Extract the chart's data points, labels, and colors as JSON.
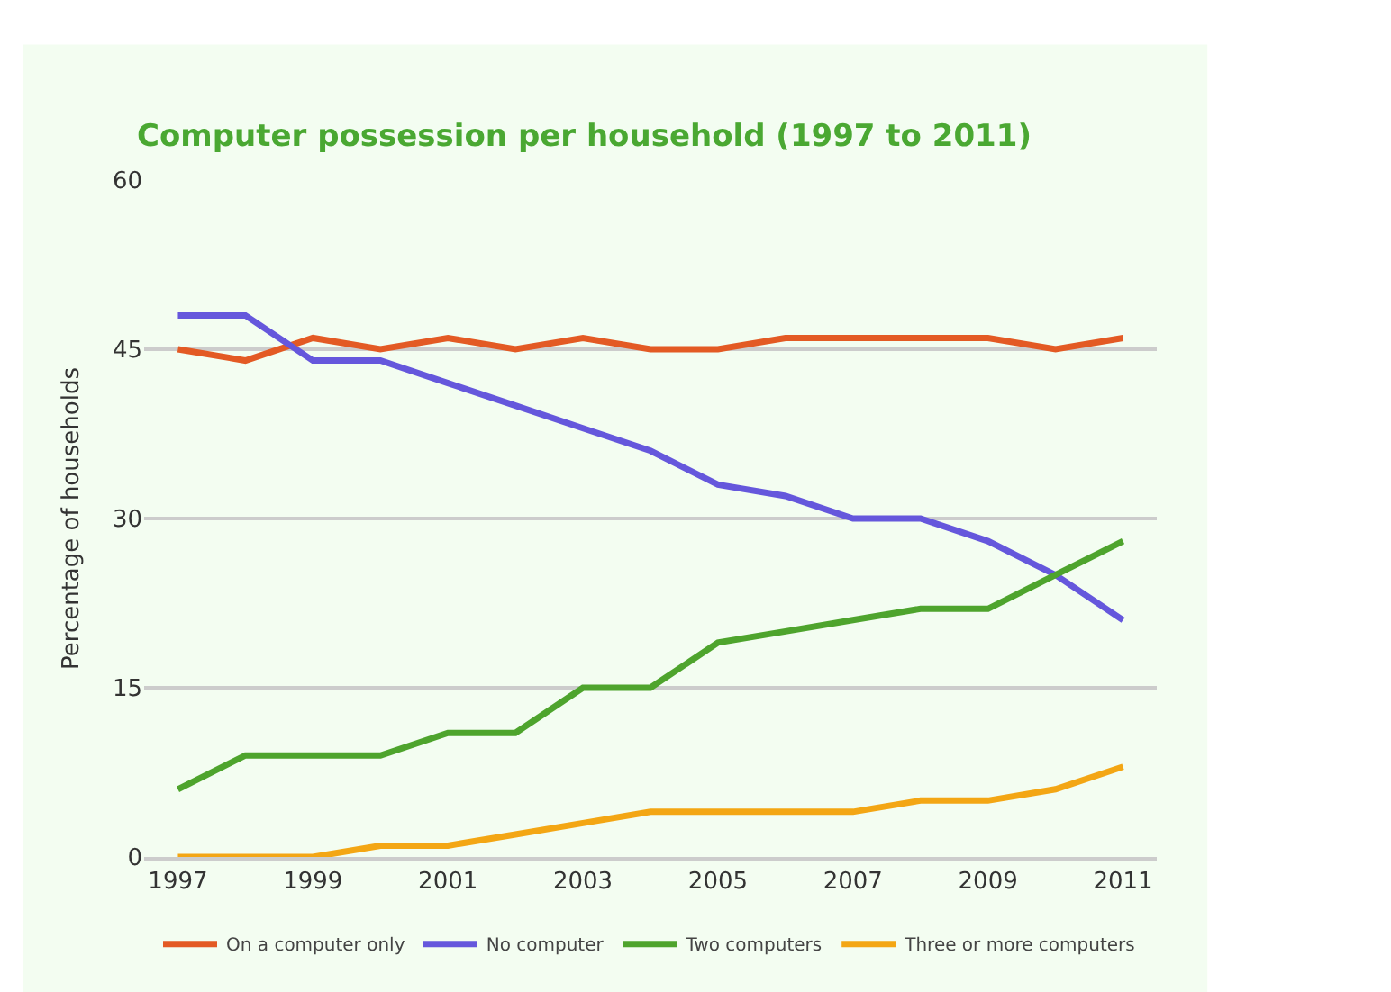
{
  "chart_data": {
    "type": "line",
    "title": "Computer possession per household (1997 to 2011)",
    "ylabel": "Percentage of households",
    "x": [
      1997,
      1998,
      1999,
      2000,
      2001,
      2002,
      2003,
      2004,
      2005,
      2006,
      2007,
      2008,
      2009,
      2010,
      2011
    ],
    "series": [
      {
        "name": "On a computer only",
        "color": "#e35a24",
        "values": [
          45,
          44,
          46,
          45,
          46,
          45,
          46,
          45,
          45,
          46,
          46,
          46,
          46,
          45,
          46
        ]
      },
      {
        "name": "No computer",
        "color": "#6557dc",
        "values": [
          48,
          48,
          44,
          44,
          42,
          40,
          38,
          36,
          33,
          32,
          30,
          30,
          28,
          25,
          21
        ]
      },
      {
        "name": "Two computers",
        "color": "#4ea42d",
        "values": [
          6,
          9,
          9,
          9,
          11,
          11,
          15,
          15,
          19,
          20,
          21,
          22,
          22,
          25,
          28
        ]
      },
      {
        "name": "Three or more computers",
        "color": "#f3a614",
        "values": [
          0,
          0,
          0,
          1,
          1,
          2,
          3,
          4,
          4,
          4,
          4,
          5,
          5,
          6,
          8
        ]
      }
    ],
    "xlim": [
      1996.5,
      2011.5
    ],
    "xticks": [
      1997,
      1999,
      2001,
      2003,
      2005,
      2007,
      2009,
      2011
    ],
    "ylim": [
      0,
      60
    ],
    "yticks": [
      0,
      15,
      30,
      45,
      60
    ],
    "grid": "y",
    "legend": "bottom",
    "marker": "none",
    "line_style": "solid"
  }
}
